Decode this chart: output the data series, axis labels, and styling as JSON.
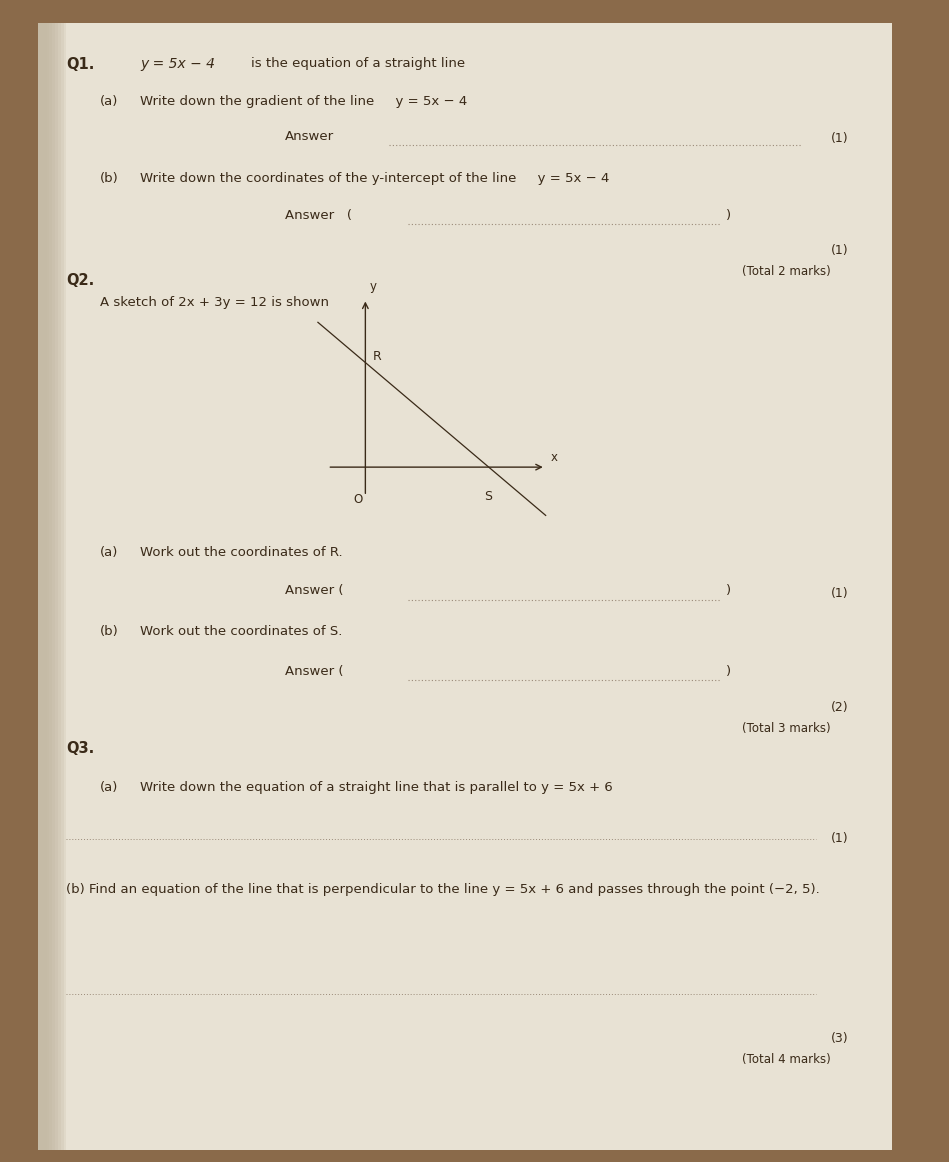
{
  "bg_color": "#8a6a4a",
  "paper_color": "#e8e2d4",
  "text_color": "#3a2a18",
  "figsize": [
    9.49,
    11.62
  ],
  "dpi": 100,
  "q1_label": "Q1.",
  "q1_eq": "y = 5x − 4",
  "q1_intro": "is the equation of a straight line",
  "q1a_label": "(a)",
  "q1a_text": "Write down the gradient of the line     y = 5x − 4",
  "q1a_answer_label": "Answer",
  "q1a_marks": "(1)",
  "q1b_label": "(b)",
  "q1b_text": "Write down the coordinates of the y-intercept of the line     y = 5x − 4",
  "q1b_answer_label": "Answer   (",
  "q1b_answer_close": ")",
  "q1b_marks": "(1)",
  "q1_total": "(Total 2 marks)",
  "q2_label": "Q2.",
  "q2_intro": "A sketch of 2x + 3y = 12 is shown",
  "q2a_label": "(a)",
  "q2a_text": "Work out the coordinates of R.",
  "q2a_answer_label": "Answer (",
  "q2a_answer_close": ")",
  "q2a_marks": "(1)",
  "q2b_label": "(b)",
  "q2b_text": "Work out the coordinates of S.",
  "q2b_answer_label": "Answer (",
  "q2b_answer_close": ")",
  "q2b_marks": "(2)",
  "q2_total": "(Total 3 marks)",
  "q3_label": "Q3.",
  "q3a_label": "(a)",
  "q3a_text": "Write down the equation of a straight line that is parallel to y = 5x + 6",
  "q3a_marks": "(1)",
  "q3b_text": "(b) Find an equation of the line that is perpendicular to the line y = 5x + 6 and passes through the point (−2, 5).",
  "q3b_marks": "(3)",
  "q3_total": "(Total 4 marks)"
}
